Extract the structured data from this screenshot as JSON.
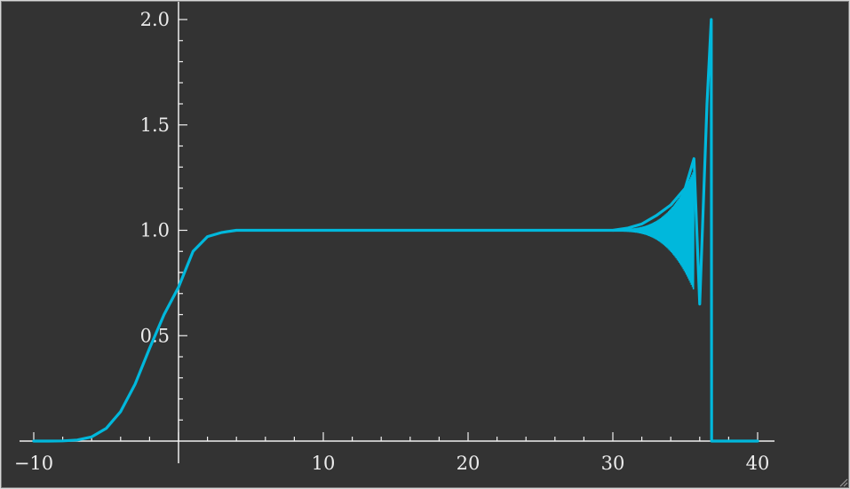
{
  "chart_data": {
    "type": "line",
    "title": "",
    "xlabel": "",
    "ylabel": "",
    "xlim": [
      -10,
      40
    ],
    "ylim": [
      0,
      2.0
    ],
    "x_ticks": [
      {
        "value": -10,
        "label": "−10"
      },
      {
        "value": 10,
        "label": "10"
      },
      {
        "value": 20,
        "label": "20"
      },
      {
        "value": 30,
        "label": "30"
      },
      {
        "value": 40,
        "label": "40"
      }
    ],
    "y_ticks": [
      {
        "value": 0.5,
        "label": "0.5"
      },
      {
        "value": 1.0,
        "label": "1.0"
      },
      {
        "value": 1.5,
        "label": "1.5"
      },
      {
        "value": 2.0,
        "label": "2.0"
      }
    ],
    "grid": false,
    "colors": {
      "background": "#333333",
      "axes": "#f0f0f0",
      "series": "#00b8dc"
    },
    "series": [
      {
        "x": [
          -10,
          -9,
          -8,
          -7,
          -6,
          -5,
          -4,
          -3,
          -2,
          -1,
          0,
          1,
          2,
          3,
          4,
          5,
          10,
          15,
          20,
          25,
          29,
          30,
          31,
          32,
          33,
          34,
          35,
          35.6,
          36,
          36.5,
          36.8,
          36.82,
          37,
          38,
          40
        ],
        "y": [
          0,
          0,
          0.001,
          0.005,
          0.02,
          0.06,
          0.14,
          0.27,
          0.44,
          0.6,
          0.73,
          0.9,
          0.97,
          0.99,
          1.0,
          1.0,
          1.0,
          1.0,
          1.0,
          1.0,
          1.0,
          1.0,
          1.01,
          1.03,
          1.07,
          1.12,
          1.2,
          1.34,
          0.65,
          1.6,
          2.0,
          0,
          0,
          0,
          0
        ]
      }
    ]
  }
}
